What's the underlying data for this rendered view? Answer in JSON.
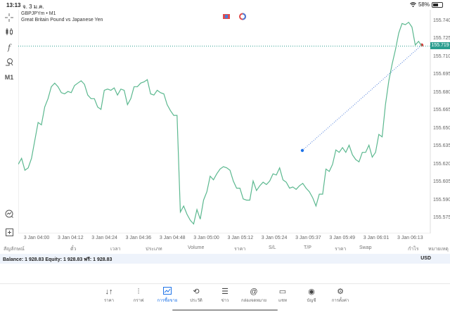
{
  "status_bar": {
    "time": "13:13",
    "date": "จ. 3 ม.ค.",
    "battery": "58%"
  },
  "chart": {
    "symbol_line": "GBPJPYm • M1",
    "description": "Great Britain Pound vs Japanese Yen",
    "timeframe": "M1",
    "current_price": "155.719",
    "line_color": "#5bb88f",
    "price_tag_color": "#2a9d8f"
  },
  "toolbar": {
    "crosshair": "crosshair-icon",
    "indicators": "candlestick-icon",
    "functions": "f",
    "objects": "shapes-icon",
    "timeframe": "M1",
    "trade_watch": "chart-zoom-icon",
    "add": "add-icon"
  },
  "chart_data": {
    "type": "line",
    "title": "GBPJPYm • M1",
    "subtitle": "Great Britain Pound vs Japanese Yen",
    "xlabel": "",
    "ylabel": "",
    "ylim": [
      155.565,
      155.75
    ],
    "y_ticks": [
      "155.740",
      "155.725",
      "155.710",
      "155.695",
      "155.680",
      "155.665",
      "155.650",
      "155.635",
      "155.620",
      "155.605",
      "155.590",
      "155.575"
    ],
    "x_ticks": [
      "3 Jan 04:00",
      "3 Jan 04:12",
      "3 Jan 04:24",
      "3 Jan 04:36",
      "3 Jan 04:48",
      "3 Jan 05:00",
      "3 Jan 05:12",
      "3 Jan 05:24",
      "3 Jan 05:37",
      "3 Jan 05:49",
      "3 Jan 06:01",
      "3 Jan 06:13"
    ],
    "grid": false,
    "series": [
      {
        "name": "GBPJPYm",
        "values": [
          155.62,
          155.625,
          155.615,
          155.617,
          155.625,
          155.64,
          155.655,
          155.653,
          155.668,
          155.675,
          155.685,
          155.688,
          155.685,
          155.68,
          155.679,
          155.681,
          155.68,
          155.686,
          155.688,
          155.69,
          155.687,
          155.678,
          155.675,
          155.675,
          155.668,
          155.666,
          155.682,
          155.683,
          155.682,
          155.684,
          155.678,
          155.683,
          155.682,
          155.67,
          155.675,
          155.685,
          155.685,
          155.688,
          155.689,
          155.691,
          155.679,
          155.678,
          155.682,
          155.68,
          155.679,
          155.67,
          155.665,
          155.661,
          155.661,
          155.58,
          155.585,
          155.578,
          155.573,
          155.57,
          155.582,
          155.574,
          155.59,
          155.597,
          155.61,
          155.607,
          155.612,
          155.616,
          155.618,
          155.617,
          155.615,
          155.606,
          155.6,
          155.6,
          155.591,
          155.59,
          155.59,
          155.606,
          155.598,
          155.602,
          155.605,
          155.603,
          155.606,
          155.612,
          155.611,
          155.617,
          155.607,
          155.605,
          155.6,
          155.601,
          155.599,
          155.602,
          155.604,
          155.6,
          155.597,
          155.592,
          155.585,
          155.595,
          155.595,
          155.616,
          155.614,
          155.62,
          155.632,
          155.63,
          155.634,
          155.63,
          155.636,
          155.628,
          155.624,
          155.622,
          155.63,
          155.63,
          155.636,
          155.626,
          155.63,
          155.645,
          155.643,
          155.67,
          155.69,
          155.704,
          155.716,
          155.73,
          155.738,
          155.737,
          155.739,
          155.735,
          155.72,
          155.723,
          155.719
        ]
      }
    ],
    "annotations": [
      {
        "type": "trendline",
        "from": {
          "time": "3 Jan 05:34",
          "price": 155.632
        },
        "to": {
          "time": "3 Jan 06:11",
          "price": 155.719
        },
        "style": "dotted"
      }
    ],
    "current_price_line": 155.719
  },
  "positions_table": {
    "headers": [
      "สัญลักษณ์",
      "ตั๋ว",
      "เวลา",
      "ประเภท",
      "Volume",
      "ราคา",
      "S/L",
      "T/P",
      "ราคา",
      "Swap",
      "กำไร",
      "หมายเหตุ"
    ]
  },
  "account": {
    "summary": "Balance: 1 928.83 Equity: 1 928.83 ฟรี: 1 928.83",
    "currency": "USD"
  },
  "bottom_nav": [
    {
      "label": "ราคา",
      "icon": "↓↑"
    },
    {
      "label": "กราฟ",
      "icon": "⫶"
    },
    {
      "label": "การซื้อขาย",
      "icon": "📈",
      "active": true
    },
    {
      "label": "ประวัติ",
      "icon": "⟲"
    },
    {
      "label": "ข่าว",
      "icon": "☰"
    },
    {
      "label": "กล่องจดหมาย",
      "icon": "@"
    },
    {
      "label": "แชท",
      "icon": "▭"
    },
    {
      "label": "บัญชี",
      "icon": "◉"
    },
    {
      "label": "การตั้งค่า",
      "icon": "⚙"
    }
  ]
}
